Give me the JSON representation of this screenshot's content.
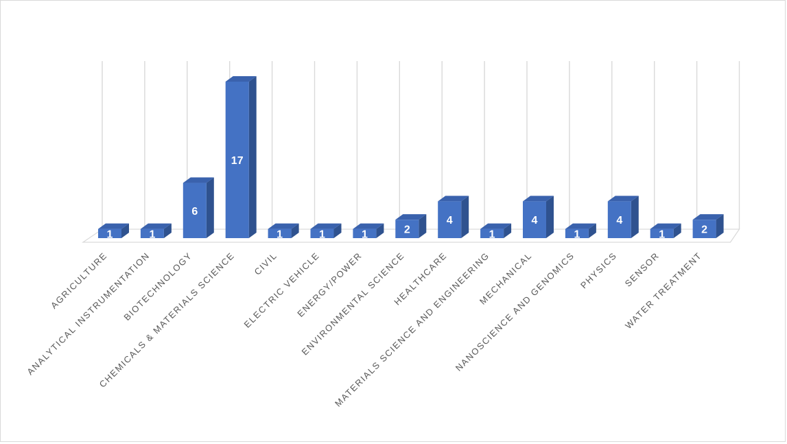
{
  "chart_data": {
    "type": "bar",
    "title": "",
    "xlabel": "",
    "ylabel": "",
    "ylim": [
      0,
      17
    ],
    "grid": "vertical",
    "legend": "none",
    "style": "3d-columns",
    "bar_color": "#4472C4",
    "categories": [
      "AGRICULTURE",
      "ANALYTICAL INSTRUMENTATION",
      "BIOTECHNOLOGY",
      "CHEMICALS & MATERIALS SCIENCE",
      "CIVIL",
      "ELECTRIC VEHICLE",
      "ENERGY/POWER",
      "ENVIRONMENTAL SCIENCE",
      "HEALTHCARE",
      "MATERIALS SCIENCE AND ENGINEERING",
      "MECHANICAL",
      "NANOSCIENCE AND GENOMICS",
      "PHYSICS",
      "SENSOR",
      "WATER TREATMENT"
    ],
    "values": [
      1,
      1,
      6,
      17,
      1,
      1,
      1,
      2,
      4,
      1,
      4,
      1,
      4,
      1,
      2
    ],
    "data_labels": [
      "1",
      "1",
      "6",
      "17",
      "1",
      "1",
      "1",
      "2",
      "4",
      "1",
      "4",
      "1",
      "4",
      "1",
      "2"
    ]
  }
}
